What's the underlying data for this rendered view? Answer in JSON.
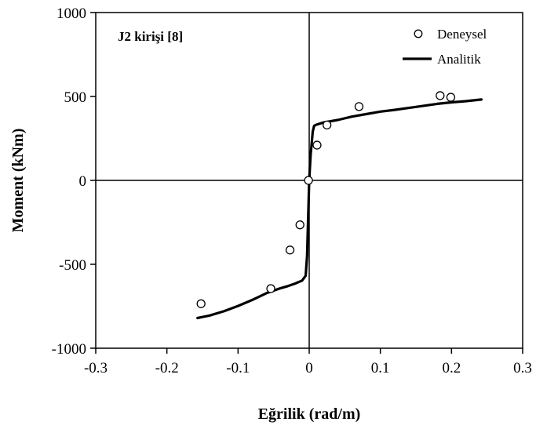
{
  "chart_data": {
    "type": "scatter",
    "title": "",
    "annotation": "J2 kirişi [8]",
    "xlabel": "Eğrilik (rad/m)",
    "ylabel": "Moment (kNm)",
    "xlim": [
      -0.3,
      0.3
    ],
    "ylim": [
      -1000,
      1000
    ],
    "x_ticks": [
      -0.3,
      -0.2,
      -0.1,
      0,
      0.1,
      0.2,
      0.3
    ],
    "x_tick_labels": [
      "-0.3",
      "-0.2",
      "-0.1",
      "0",
      "0.1",
      "0.2",
      "0.3"
    ],
    "y_ticks": [
      -1000,
      -500,
      0,
      500,
      1000
    ],
    "y_tick_labels": [
      "-1000",
      "-500",
      "0",
      "500",
      "1000"
    ],
    "grid": false,
    "legend_position": "top-right",
    "series": [
      {
        "name": "Deneysel",
        "kind": "markers",
        "x": [
          -0.152,
          -0.054,
          -0.027,
          -0.013,
          -0.001,
          0.011,
          0.025,
          0.07,
          0.184,
          0.199
        ],
        "y": [
          -735,
          -645,
          -415,
          -265,
          0,
          210,
          330,
          440,
          505,
          495
        ]
      },
      {
        "name": "Analitik",
        "kind": "line",
        "x": [
          -0.157,
          -0.14,
          -0.12,
          -0.1,
          -0.08,
          -0.06,
          -0.04,
          -0.03,
          -0.02,
          -0.01,
          -0.005,
          -0.003,
          -0.001,
          0,
          0.002,
          0.005,
          0.007,
          0.01,
          0.02,
          0.04,
          0.06,
          0.08,
          0.1,
          0.12,
          0.15,
          0.18,
          0.2,
          0.22,
          0.242
        ],
        "y": [
          -820,
          -805,
          -780,
          -748,
          -712,
          -672,
          -642,
          -630,
          -615,
          -597,
          -568,
          -450,
          -150,
          0,
          150,
          290,
          325,
          332,
          345,
          360,
          380,
          395,
          410,
          420,
          438,
          456,
          465,
          472,
          482
        ]
      }
    ]
  }
}
